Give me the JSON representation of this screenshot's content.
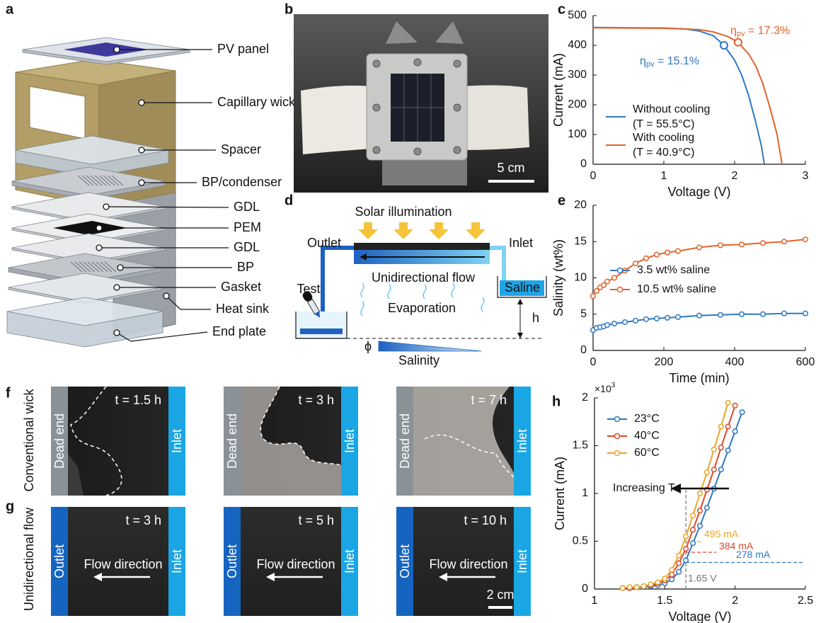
{
  "panel_labels": [
    "a",
    "b",
    "c",
    "d",
    "e",
    "f",
    "g",
    "h"
  ],
  "panel_a": {
    "labels": [
      "PV panel",
      "Capillary wick",
      "Spacer",
      "BP/condenser",
      "GDL",
      "PEM",
      "GDL",
      "BP",
      "Gasket",
      "Heat sink",
      "End plate"
    ]
  },
  "panel_b": {
    "scale_bar": "5 cm"
  },
  "panel_d": {
    "illumination": "Solar illumination",
    "outlet": "Outlet",
    "inlet": "Inlet",
    "test": "Test",
    "flow": "Unidirectional flow",
    "saline": "Saline",
    "evaporation": "Evaporation",
    "height": "h",
    "phi": "ϕ",
    "gradient": "Salinity"
  },
  "panel_f": {
    "row_label": "Conventional wick",
    "left_label": "Dead end",
    "right_label": "Inlet",
    "times": [
      "t = 1.5 h",
      "t = 3 h",
      "t = 7 h"
    ]
  },
  "panel_g": {
    "row_label": "Unidirectional flow",
    "left_label": "Outlet",
    "right_label": "Inlet",
    "arrow_label": "Flow direction",
    "times": [
      "t = 3 h",
      "t = 5 h",
      "t = 10 h"
    ],
    "scale_bar": "2 cm"
  },
  "chart_data": [
    {
      "type": "line",
      "x_label": "Voltage (V)",
      "y_label": "Current (mA)",
      "xlim": [
        0,
        3
      ],
      "ylim": [
        0,
        500
      ],
      "xticks": [
        0,
        1,
        2,
        3
      ],
      "yticks": [
        0,
        100,
        200,
        300,
        400,
        500
      ],
      "markers": false,
      "legend": "lower left",
      "series": [
        {
          "name": "Without cooling",
          "condition": "(T = 55.5°C)",
          "color": "#2f78c4",
          "x": [
            0,
            0.5,
            1.0,
            1.3,
            1.5,
            1.7,
            1.85,
            2.0,
            2.1,
            2.2,
            2.3,
            2.38,
            2.42
          ],
          "values": [
            460,
            459,
            458,
            455,
            448,
            432,
            400,
            350,
            300,
            230,
            140,
            60,
            0
          ],
          "mpp": {
            "x": 1.85,
            "y": 400
          }
        },
        {
          "name": "With cooling",
          "condition": "(T = 40.9°C)",
          "color": "#e3622b",
          "x": [
            0,
            0.5,
            1.0,
            1.5,
            1.7,
            1.9,
            2.05,
            2.2,
            2.3,
            2.4,
            2.5,
            2.6,
            2.67
          ],
          "values": [
            459,
            458,
            457,
            453,
            445,
            430,
            410,
            370,
            330,
            270,
            190,
            100,
            0
          ],
          "mpp": {
            "x": 2.05,
            "y": 410
          }
        }
      ],
      "annotations": [
        {
          "symbol": "η",
          "subscript": "pv",
          "text": " = 15.1%",
          "color": "#2f78c4"
        },
        {
          "symbol": "η",
          "subscript": "pv",
          "text": " = 17.3%",
          "color": "#e3622b"
        }
      ]
    },
    {
      "type": "line",
      "x_label": "Time (min)",
      "y_label": "Salinity (wt%)",
      "xlim": [
        0,
        600
      ],
      "ylim": [
        0,
        20
      ],
      "xticks": [
        0,
        200,
        400,
        600
      ],
      "yticks": [
        0,
        5,
        10,
        15,
        20
      ],
      "markers": true,
      "legend": "center right",
      "series": [
        {
          "name": "3.5 wt% saline",
          "color": "#2f78c4",
          "x": [
            0,
            10,
            20,
            30,
            40,
            60,
            90,
            120,
            150,
            180,
            210,
            240,
            300,
            360,
            420,
            480,
            540,
            600
          ],
          "values": [
            2.8,
            3.1,
            3.2,
            3.3,
            3.5,
            3.7,
            3.9,
            4.1,
            4.3,
            4.4,
            4.5,
            4.6,
            4.8,
            4.9,
            5.0,
            5.0,
            5.1,
            5.1
          ]
        },
        {
          "name": "10.5 wt% saline",
          "color": "#e3622b",
          "x": [
            0,
            10,
            20,
            30,
            40,
            60,
            90,
            120,
            150,
            180,
            210,
            240,
            300,
            360,
            420,
            480,
            540,
            600
          ],
          "values": [
            7.5,
            8.2,
            8.7,
            9.0,
            9.5,
            10.0,
            11.0,
            12.0,
            12.7,
            13.2,
            13.5,
            13.7,
            14.2,
            14.5,
            14.6,
            14.8,
            15.0,
            15.3
          ]
        }
      ]
    },
    {
      "type": "line",
      "x_label": "Voltage (V)",
      "y_label": "Current (mA)",
      "y_multiplier": {
        "base": "×10",
        "exponent": "3"
      },
      "xlim": [
        1,
        2.5
      ],
      "ylim": [
        0,
        2
      ],
      "xticks": [
        1,
        1.5,
        2,
        2.5
      ],
      "yticks": [
        0,
        0.5,
        1,
        1.5,
        2
      ],
      "markers": true,
      "legend": "upper left",
      "series": [
        {
          "name": "23°C",
          "color": "#2f78c4",
          "x": [
            1.2,
            1.25,
            1.3,
            1.35,
            1.4,
            1.45,
            1.5,
            1.55,
            1.6,
            1.65,
            1.7,
            1.75,
            1.8,
            1.85,
            1.9,
            1.95,
            2.0,
            2.05
          ],
          "values": [
            0.01,
            0.01,
            0.02,
            0.02,
            0.03,
            0.04,
            0.06,
            0.1,
            0.18,
            0.3,
            0.48,
            0.66,
            0.85,
            1.05,
            1.25,
            1.45,
            1.65,
            1.85
          ]
        },
        {
          "name": "40°C",
          "color": "#e0472a",
          "x": [
            1.2,
            1.25,
            1.3,
            1.35,
            1.4,
            1.45,
            1.5,
            1.55,
            1.6,
            1.65,
            1.7,
            1.75,
            1.8,
            1.85,
            1.9,
            1.95,
            2.0
          ],
          "values": [
            0.01,
            0.01,
            0.02,
            0.03,
            0.04,
            0.06,
            0.09,
            0.15,
            0.27,
            0.42,
            0.62,
            0.82,
            1.04,
            1.25,
            1.48,
            1.7,
            1.92
          ]
        },
        {
          "name": "60°C",
          "color": "#eaa62a",
          "x": [
            1.2,
            1.25,
            1.3,
            1.35,
            1.4,
            1.45,
            1.5,
            1.55,
            1.6,
            1.65,
            1.7,
            1.75,
            1.8,
            1.85,
            1.9,
            1.95
          ],
          "values": [
            0.01,
            0.02,
            0.02,
            0.03,
            0.05,
            0.07,
            0.11,
            0.2,
            0.35,
            0.55,
            0.77,
            1.0,
            1.22,
            1.46,
            1.7,
            1.95
          ]
        }
      ],
      "annotations": [
        {
          "text": "Increasing T"
        }
      ],
      "reference_lines": [
        {
          "y": 0.495,
          "label": "495 mA",
          "color": "#eaa62a"
        },
        {
          "y": 0.384,
          "label": "384 mA",
          "color": "#e0472a"
        },
        {
          "y": 0.278,
          "label": "278 mA",
          "color": "#2f78c4"
        }
      ],
      "reference_x": {
        "x": 1.65,
        "label": "1.65 V",
        "color": "#777777"
      }
    }
  ]
}
